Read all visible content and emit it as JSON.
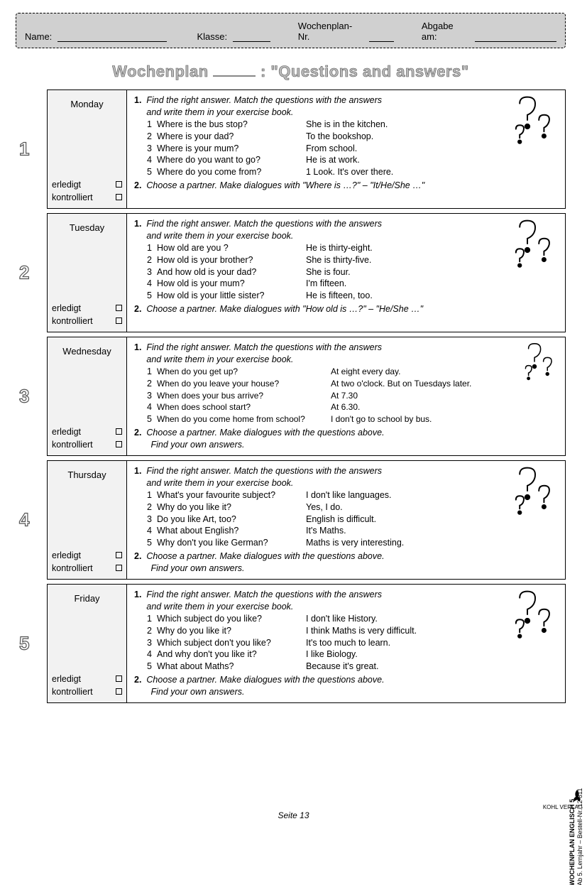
{
  "header": {
    "name_label": "Name:",
    "class_label": "Klasse:",
    "wp_label": "Wochenplan- Nr.",
    "due_label": "Abgabe am:"
  },
  "title_pre": "Wochenplan",
  "title_post": ": \"Questions and answers\"",
  "status": {
    "done": "erledigt",
    "checked": "kontrolliert"
  },
  "task1_instr": "Find the right answer. Match the questions with the answers and write them in your exercise book.",
  "days": [
    {
      "num": "1",
      "name": "Monday",
      "rows": [
        {
          "n": "1",
          "q": "Where is the bus stop?",
          "a": "She is in the kitchen."
        },
        {
          "n": "2",
          "q": "Where is your dad?",
          "a": "To the bookshop."
        },
        {
          "n": "3",
          "q": "Where is your mum?",
          "a": "From school."
        },
        {
          "n": "4",
          "q": "Where do you want to go?",
          "a": " He is at work."
        },
        {
          "n": "5",
          "q": "Where do you come from?",
          "a": "1 Look. It's over there."
        }
      ],
      "task2": "Choose a partner. Make dialogues with \"Where is …?\" – \"It/He/She …\"",
      "task2_cont": ""
    },
    {
      "num": "2",
      "name": "Tuesday",
      "rows": [
        {
          "n": "1",
          "q": "How old are you ?",
          "a": "He is thirty-eight."
        },
        {
          "n": "2",
          "q": "How old is your brother?",
          "a": "She is thirty-five."
        },
        {
          "n": "3",
          "q": "And how old is your dad?",
          "a": " She is four."
        },
        {
          "n": "4",
          "q": "How old is your mum?",
          "a": "I'm fifteen."
        },
        {
          "n": "5",
          "q": "How old is your little sister?",
          "a": " He is fifteen, too."
        }
      ],
      "task2": "Choose a partner. Make dialogues with \"How old is …?\" – \"He/She …\"",
      "task2_cont": ""
    },
    {
      "num": "3",
      "name": "Wednesday",
      "wide": true,
      "rows": [
        {
          "n": "1",
          "q": "When do you get up?",
          "a": "At eight every day."
        },
        {
          "n": "2",
          "q": "When do you leave your house?",
          "a": "At two o'clock. But on Tuesdays later."
        },
        {
          "n": "3",
          "q": "When does your bus arrive?",
          "a": "At 7.30"
        },
        {
          "n": "4",
          "q": "When does school start?",
          "a": "At 6.30."
        },
        {
          "n": "5",
          "q": "When do you come home from school?",
          "a": "I don't go to school by bus."
        }
      ],
      "task2": "Choose a partner. Make dialogues with the questions above.",
      "task2_cont": "Find your own answers."
    },
    {
      "num": "4",
      "name": "Thursday",
      "rows": [
        {
          "n": "1",
          "q": "What's your favourite subject?",
          "a": "I don't like languages."
        },
        {
          "n": "2",
          "q": "Why do you like it?",
          "a": "Yes, I do."
        },
        {
          "n": "3",
          "q": "Do you like Art, too?",
          "a": "English is difficult."
        },
        {
          "n": "4",
          "q": "What about English?",
          "a": "It's Maths."
        },
        {
          "n": "5",
          "q": "Why don't you like German?",
          "a": "Maths is very interesting."
        }
      ],
      "task2": "Choose a partner. Make dialogues with the questions above.",
      "task2_cont": "Find your own answers."
    },
    {
      "num": "5",
      "name": "Friday",
      "rows": [
        {
          "n": "1",
          "q": "Which subject do you like?",
          "a": "I don't like History."
        },
        {
          "n": "2",
          "q": "Why do you like it?",
          "a": "I think Maths is very difficult."
        },
        {
          "n": "3",
          "q": "Which subject don't you like?",
          "a": "It's too much to learn."
        },
        {
          "n": "4",
          "q": "And why don't you like it?",
          "a": "I like Biology."
        },
        {
          "n": "5",
          "q": "What about Maths?",
          "a": "Because it's great."
        }
      ],
      "task2": "Choose a partner. Make dialogues with the questions above.",
      "task2_cont": "Find your own answers."
    }
  ],
  "footer": "Seite 13",
  "side": {
    "line1": "WOCHENPLAN ENGLISCH  5",
    "line2": "Ab 5. Lernjahr    –    Bestell-Nr. 12 811",
    "logo": "KOHL VERLAG"
  }
}
